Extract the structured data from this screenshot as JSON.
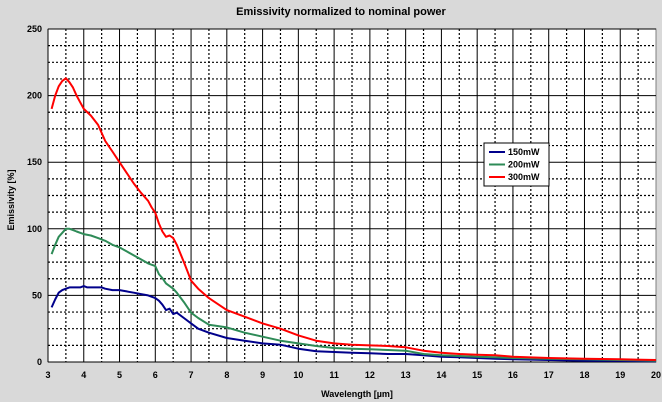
{
  "chart_data": {
    "type": "line",
    "title": "Emissivity normalized to nominal power",
    "xlabel": "Wavelength [µm]",
    "ylabel": "Emissivity [%]",
    "xlim": [
      3,
      20
    ],
    "ylim": [
      0,
      250
    ],
    "x_ticks": [
      3,
      4,
      5,
      6,
      7,
      8,
      9,
      10,
      11,
      12,
      13,
      14,
      15,
      16,
      17,
      18,
      19,
      20
    ],
    "y_ticks": [
      0,
      50,
      100,
      150,
      200,
      250
    ],
    "x_minor_step": 0.5,
    "y_minor_step": 12.5,
    "grid": true,
    "legend_position": "right-middle",
    "background_color": "#d9d9d9",
    "plot_background_color": "#ffffff",
    "series": [
      {
        "name": "150mW",
        "color": "#00008b",
        "x": [
          3.1,
          3.2,
          3.3,
          3.4,
          3.5,
          3.6,
          3.7,
          3.8,
          3.9,
          4.0,
          4.1,
          4.2,
          4.3,
          4.4,
          4.5,
          4.6,
          4.8,
          5.0,
          5.2,
          5.4,
          5.6,
          5.8,
          6.0,
          6.1,
          6.2,
          6.3,
          6.4,
          6.5,
          6.6,
          6.8,
          7.0,
          7.2,
          7.5,
          8.0,
          8.5,
          9.0,
          9.5,
          10.0,
          10.5,
          11.0,
          11.5,
          12.0,
          12.5,
          13.0,
          13.5,
          14.0,
          14.5,
          15.0,
          15.5,
          16.0,
          17.0,
          18.0,
          19.0,
          20.0
        ],
        "y": [
          41,
          47,
          52,
          54,
          55,
          56,
          56,
          56,
          56,
          57,
          56,
          56,
          56,
          56,
          56,
          55,
          54,
          54,
          53,
          52,
          51,
          50,
          48,
          46,
          43,
          39,
          40,
          36,
          37,
          33,
          29,
          25,
          22,
          18,
          16,
          14,
          13,
          10,
          8,
          7.5,
          7,
          6.5,
          6,
          6,
          5,
          4,
          3.5,
          3,
          2.5,
          2,
          1.5,
          1,
          0.8,
          0.5
        ]
      },
      {
        "name": "200mW",
        "color": "#2e8b57",
        "x": [
          3.1,
          3.2,
          3.3,
          3.4,
          3.5,
          3.6,
          3.7,
          3.8,
          3.9,
          4.0,
          4.2,
          4.4,
          4.6,
          4.8,
          5.0,
          5.2,
          5.4,
          5.6,
          5.8,
          6.0,
          6.1,
          6.2,
          6.3,
          6.4,
          6.5,
          6.6,
          6.8,
          7.0,
          7.2,
          7.5,
          8.0,
          8.5,
          9.0,
          9.5,
          10.0,
          10.5,
          11.0,
          11.5,
          12.0,
          12.5,
          13.0,
          13.5,
          14.0,
          14.5,
          15.0,
          15.5,
          16.0,
          17.0,
          18.0,
          19.0,
          20.0
        ],
        "y": [
          81,
          88,
          94,
          97,
          100,
          100,
          99,
          98,
          97,
          96,
          95,
          93,
          91,
          88,
          86,
          83,
          80,
          77,
          74,
          72,
          66,
          63,
          59,
          57,
          55,
          52,
          45,
          37,
          33,
          28,
          26,
          22,
          19,
          16,
          14,
          12,
          10.5,
          10,
          9.5,
          9,
          8.5,
          6,
          5,
          4.5,
          4,
          3.5,
          3,
          2.5,
          2,
          1.5,
          1
        ]
      },
      {
        "name": "300mW",
        "color": "#ff0000",
        "x": [
          3.1,
          3.2,
          3.3,
          3.4,
          3.5,
          3.6,
          3.7,
          3.8,
          3.9,
          4.0,
          4.2,
          4.4,
          4.6,
          4.8,
          5.0,
          5.2,
          5.4,
          5.6,
          5.8,
          5.9,
          6.0,
          6.1,
          6.2,
          6.3,
          6.4,
          6.5,
          6.6,
          6.8,
          7.0,
          7.2,
          7.5,
          8.0,
          8.5,
          9.0,
          9.5,
          10.0,
          10.5,
          11.0,
          11.5,
          12.0,
          12.5,
          13.0,
          13.5,
          14.0,
          14.5,
          15.0,
          15.5,
          16.0,
          17.0,
          18.0,
          19.0,
          20.0
        ],
        "y": [
          190,
          200,
          207,
          211,
          213,
          210,
          206,
          200,
          195,
          190,
          185,
          178,
          166,
          158,
          150,
          142,
          134,
          127,
          121,
          116,
          112,
          104,
          98,
          94,
          95,
          93,
          88,
          75,
          61,
          55,
          48,
          39,
          34,
          29,
          25,
          20,
          16,
          14,
          13,
          12.5,
          12,
          11,
          8.5,
          7,
          6,
          5.5,
          5,
          4,
          3,
          2.5,
          2,
          1.5
        ]
      }
    ]
  }
}
